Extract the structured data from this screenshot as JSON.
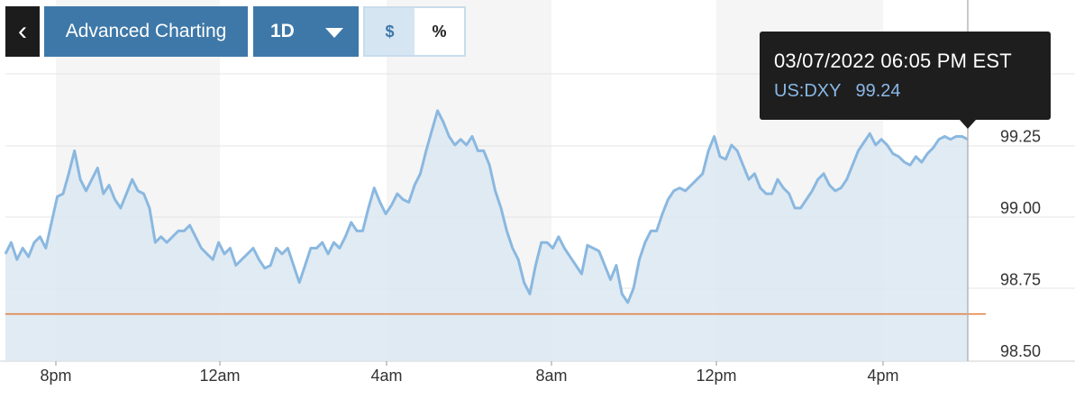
{
  "toolbar": {
    "back_icon": "chevron-left-icon",
    "back_glyph": "‹",
    "advanced_label": "Advanced Charting",
    "range_label": "1D",
    "dollar_label": "$",
    "percent_label": "%"
  },
  "tooltip": {
    "datetime": "03/07/2022 06:05 PM EST",
    "symbol": "US:DXY",
    "value": "99.24"
  },
  "colors": {
    "line": "#8ab8e0",
    "area": "#dce8f1",
    "reference_line": "#e07b39",
    "accent": "#3e78a8"
  },
  "chart_data": {
    "type": "area",
    "symbol": "US:DXY",
    "ylim": [
      98.5,
      99.5
    ],
    "y_ticks": [
      "99.25",
      "99.00",
      "98.75",
      "98.50"
    ],
    "y_tick_values": [
      99.25,
      99.0,
      98.75,
      98.5
    ],
    "x_ticks": [
      "8pm",
      "12am",
      "4am",
      "8am",
      "12pm",
      "4pm"
    ],
    "reference_line_value": 98.63,
    "grid": true,
    "series": [
      {
        "values": [
          98.84,
          98.88,
          98.82,
          98.86,
          98.83,
          98.88,
          98.9,
          98.86,
          98.95,
          99.04,
          99.05,
          99.12,
          99.2,
          99.1,
          99.06,
          99.1,
          99.14,
          99.05,
          99.08,
          99.03,
          99.0,
          99.05,
          99.1,
          99.06,
          99.05,
          99.0,
          98.88,
          98.9,
          98.88,
          98.9,
          98.92,
          98.92,
          98.94,
          98.9,
          98.86,
          98.84,
          98.82,
          98.88,
          98.84,
          98.86,
          98.8,
          98.82,
          98.84,
          98.86,
          98.82,
          98.79,
          98.8,
          98.86,
          98.84,
          98.86,
          98.8,
          98.74,
          98.8,
          98.86,
          98.86,
          98.88,
          98.84,
          98.88,
          98.86,
          98.9,
          98.95,
          98.92,
          98.92,
          99.0,
          99.07,
          99.02,
          98.98,
          99.01,
          99.05,
          99.03,
          99.02,
          99.08,
          99.12,
          99.2,
          99.27,
          99.34,
          99.3,
          99.25,
          99.22,
          99.24,
          99.22,
          99.25,
          99.2,
          99.2,
          99.15,
          99.06,
          99.0,
          98.92,
          98.86,
          98.82,
          98.74,
          98.7,
          98.8,
          98.88,
          98.88,
          98.86,
          98.9,
          98.86,
          98.83,
          98.8,
          98.77,
          98.87,
          98.86,
          98.85,
          98.8,
          98.75,
          98.8,
          98.7,
          98.67,
          98.72,
          98.82,
          98.88,
          98.92,
          98.92,
          98.98,
          99.03,
          99.06,
          99.07,
          99.06,
          99.08,
          99.1,
          99.12,
          99.2,
          99.25,
          99.18,
          99.17,
          99.22,
          99.2,
          99.15,
          99.1,
          99.12,
          99.07,
          99.05,
          99.05,
          99.1,
          99.07,
          99.05,
          99.0,
          99.0,
          99.03,
          99.06,
          99.1,
          99.12,
          99.08,
          99.06,
          99.07,
          99.1,
          99.15,
          99.2,
          99.23,
          99.26,
          99.22,
          99.24,
          99.22,
          99.19,
          99.18,
          99.16,
          99.15,
          99.18,
          99.16,
          99.19,
          99.21,
          99.24,
          99.25,
          99.24,
          99.25,
          99.25,
          99.24
        ]
      }
    ]
  }
}
